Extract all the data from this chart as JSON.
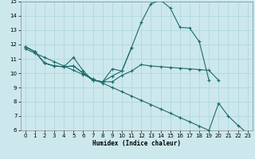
{
  "xlabel": "Humidex (Indice chaleur)",
  "bg_color": "#cce8ed",
  "grid_color": "#aad4da",
  "line_color": "#1e6b6b",
  "xlim_min": -0.5,
  "xlim_max": 23.5,
  "ylim_min": 6,
  "ylim_max": 15,
  "xticks": [
    0,
    1,
    2,
    3,
    4,
    5,
    6,
    7,
    8,
    9,
    10,
    11,
    12,
    13,
    14,
    15,
    16,
    17,
    18,
    19,
    20,
    21,
    22,
    23
  ],
  "yticks": [
    6,
    7,
    8,
    9,
    10,
    11,
    12,
    13,
    14,
    15
  ],
  "curve1_x": [
    0,
    1,
    2,
    3,
    4,
    5,
    6,
    7,
    8,
    9,
    10,
    11,
    12,
    13,
    14,
    15,
    16,
    17,
    18,
    19
  ],
  "curve1_y": [
    11.85,
    11.5,
    10.7,
    10.5,
    10.45,
    11.1,
    10.15,
    9.5,
    9.4,
    10.3,
    10.15,
    11.8,
    13.55,
    14.85,
    15.1,
    14.55,
    13.2,
    13.15,
    12.2,
    9.5
  ],
  "curve2_x": [
    0,
    1,
    2,
    3,
    4,
    5,
    6,
    7,
    8,
    9,
    10,
    11
  ],
  "curve2_y": [
    11.85,
    11.5,
    10.7,
    10.5,
    10.45,
    10.5,
    10.0,
    9.5,
    9.4,
    9.8,
    10.15,
    11.8
  ],
  "curve3_x": [
    0,
    1,
    2,
    3,
    4,
    5,
    6,
    7,
    8,
    9,
    10,
    11,
    12,
    13,
    14,
    15,
    16,
    17,
    18,
    19,
    20,
    21,
    22
  ],
  "curve3_y": [
    11.85,
    11.5,
    10.7,
    10.5,
    10.45,
    10.5,
    10.0,
    9.5,
    9.4,
    9.4,
    9.85,
    10.15,
    10.6,
    10.5,
    10.45,
    10.4,
    10.35,
    10.3,
    10.25,
    10.2,
    9.5,
    null,
    null
  ],
  "curve4_x": [
    0,
    1,
    2,
    3,
    4,
    5,
    6,
    7,
    8,
    9,
    10,
    11,
    12,
    13,
    14,
    15,
    16,
    17,
    18,
    19,
    20,
    21,
    22,
    23
  ],
  "curve4_y": [
    11.7,
    11.4,
    11.1,
    10.8,
    10.5,
    10.2,
    9.9,
    9.6,
    9.3,
    9.0,
    8.7,
    8.4,
    8.1,
    7.8,
    7.5,
    7.2,
    6.9,
    6.6,
    6.3,
    6.0,
    7.9,
    7.0,
    6.35,
    5.8
  ]
}
